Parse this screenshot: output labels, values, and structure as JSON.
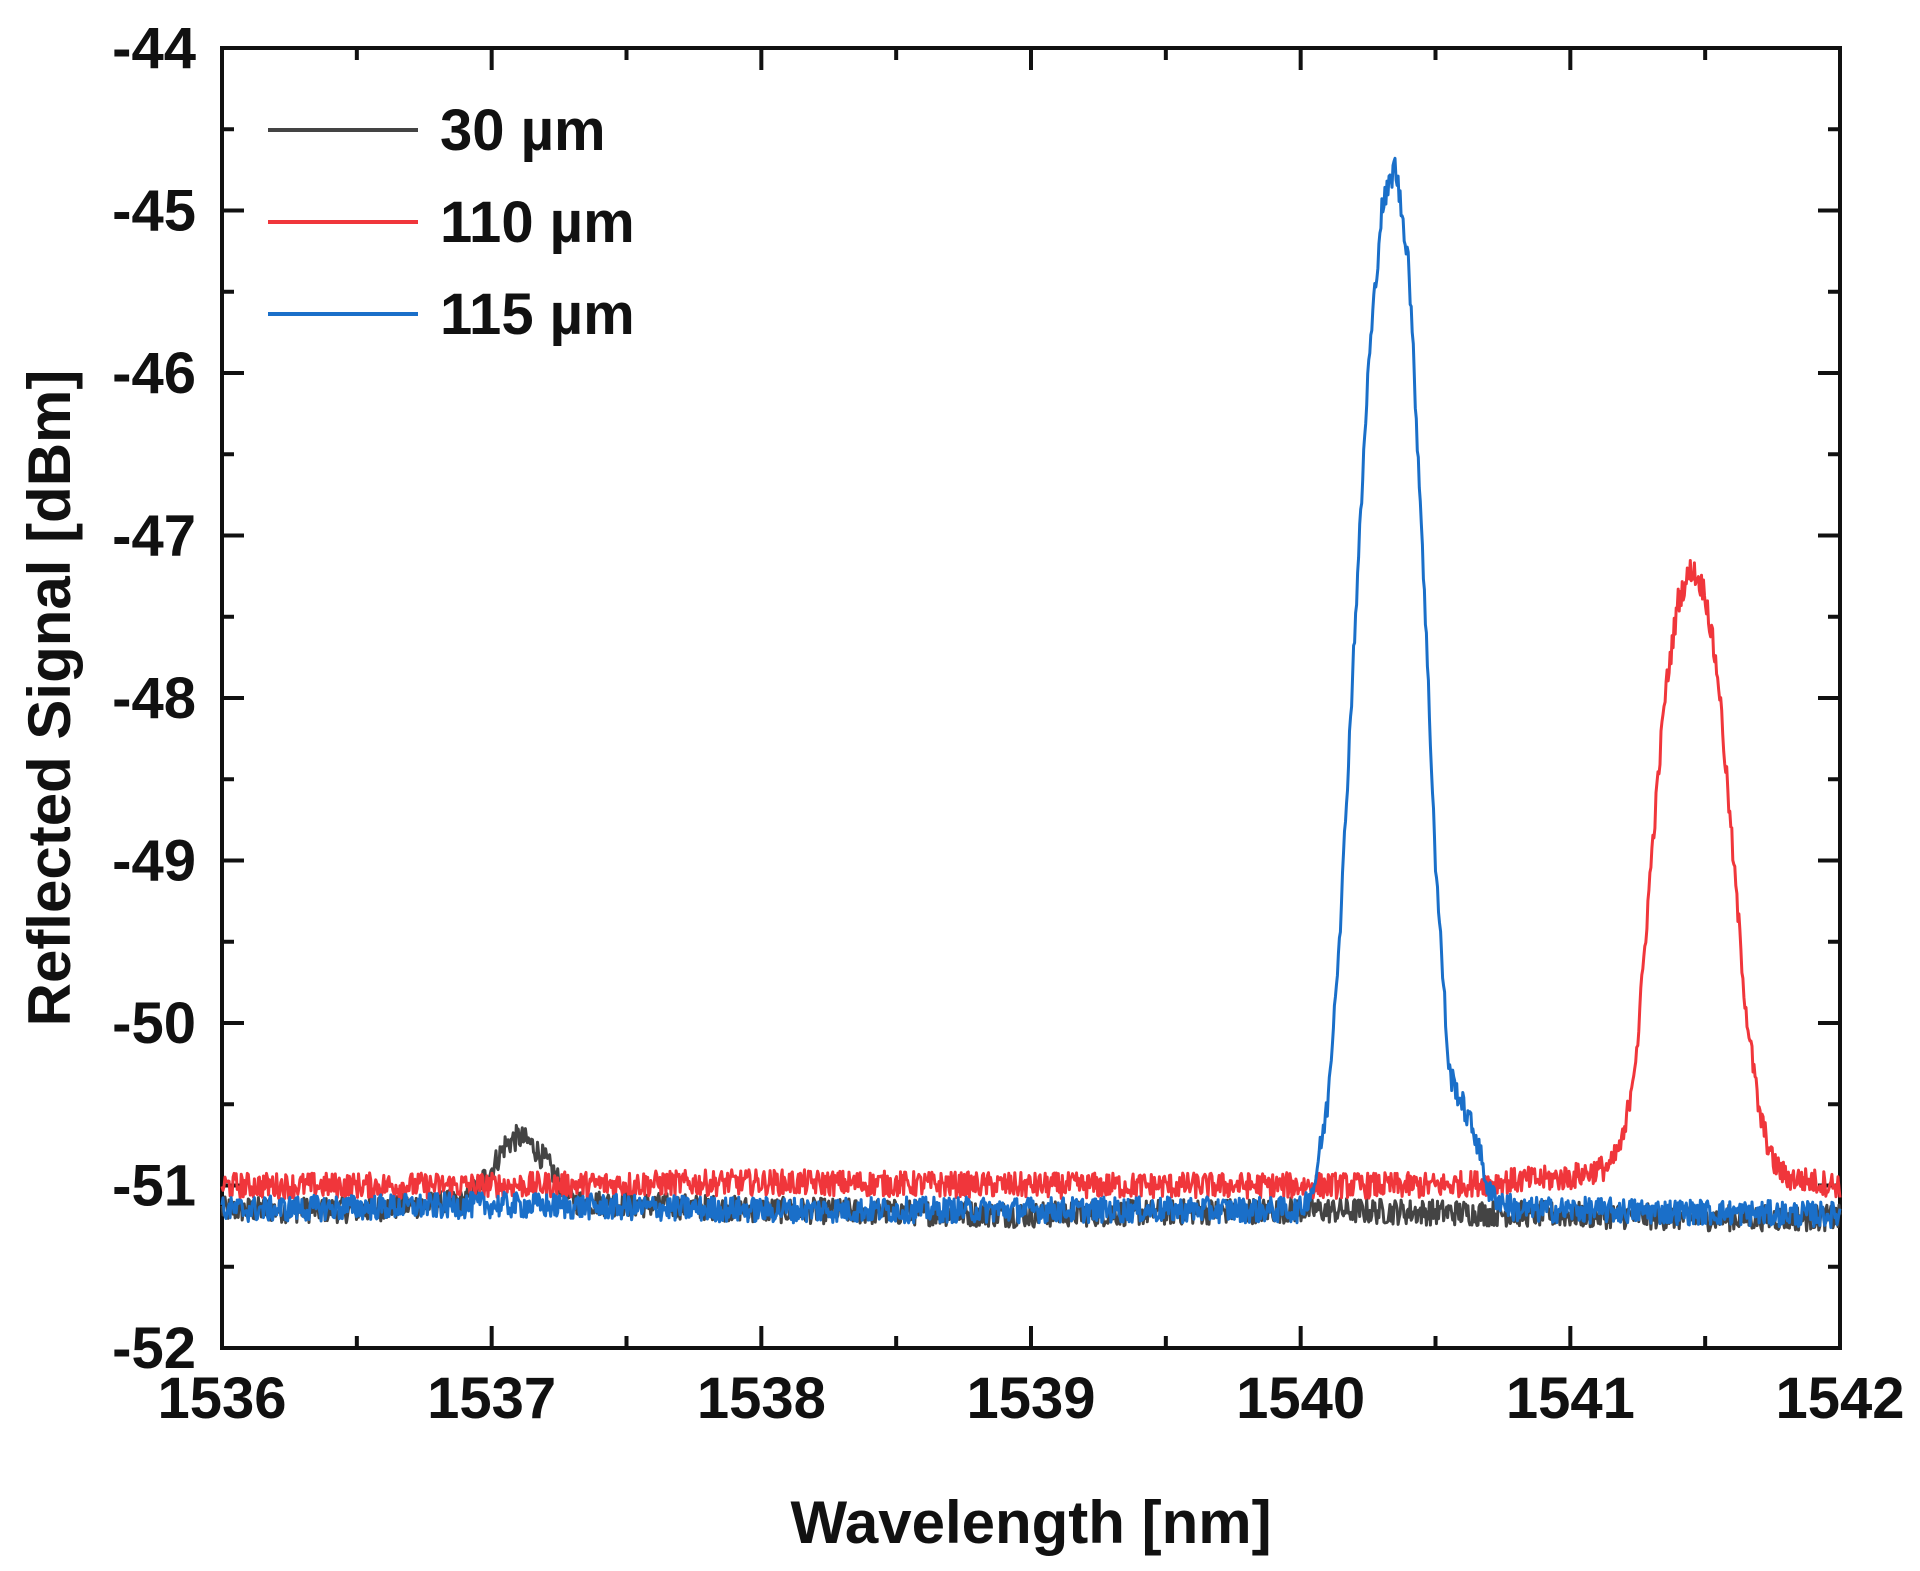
{
  "chart_data": {
    "type": "line",
    "title": "",
    "xlabel": "Wavelength [nm]",
    "ylabel": "Reflected Signal [dBm]",
    "xlim": [
      1536,
      1542
    ],
    "ylim": [
      -52,
      -44
    ],
    "xticks": [
      1536,
      1537,
      1538,
      1539,
      1540,
      1541,
      1542
    ],
    "xtick_labels": [
      "1536",
      "1537",
      "1538",
      "1539",
      "1540",
      "1541",
      "1542"
    ],
    "yticks": [
      -52,
      -51,
      -50,
      -49,
      -48,
      -47,
      -46,
      -45,
      -44
    ],
    "ytick_labels": [
      "-52",
      "-51",
      "-50",
      "-49",
      "-48",
      "-47",
      "-46",
      "-45",
      "-44"
    ],
    "grid": false,
    "legend_position": "top-left",
    "series": [
      {
        "name": "30 µm",
        "color": "#444444",
        "x": [
          1536.0,
          1536.5,
          1536.9,
          1537.0,
          1537.05,
          1537.1,
          1537.15,
          1537.2,
          1537.3,
          1538.0,
          1539.0,
          1540.0,
          1541.0,
          1541.5,
          1542.0
        ],
        "y": [
          -51.15,
          -51.15,
          -51.1,
          -50.9,
          -50.75,
          -50.7,
          -50.75,
          -50.85,
          -51.1,
          -51.15,
          -51.18,
          -51.15,
          -51.18,
          -51.2,
          -51.2
        ]
      },
      {
        "name": "110 µm",
        "color": "#f0363b",
        "x": [
          1536.0,
          1537.0,
          1538.0,
          1539.0,
          1540.0,
          1540.5,
          1541.0,
          1541.15,
          1541.2,
          1541.25,
          1541.3,
          1541.35,
          1541.4,
          1541.45,
          1541.5,
          1541.55,
          1541.6,
          1541.65,
          1541.7,
          1541.75,
          1541.8,
          1542.0
        ],
        "y": [
          -51.0,
          -51.0,
          -50.98,
          -51.0,
          -51.0,
          -51.0,
          -50.95,
          -50.88,
          -50.7,
          -50.1,
          -49.0,
          -48.0,
          -47.4,
          -47.2,
          -47.35,
          -47.9,
          -48.9,
          -49.9,
          -50.55,
          -50.85,
          -50.95,
          -51.0
        ]
      },
      {
        "name": "115 µm",
        "color": "#1a6fc9",
        "x": [
          1536.0,
          1537.0,
          1538.0,
          1539.0,
          1540.0,
          1540.05,
          1540.1,
          1540.15,
          1540.2,
          1540.25,
          1540.3,
          1540.35,
          1540.4,
          1540.45,
          1540.5,
          1540.55,
          1540.6,
          1540.65,
          1540.7,
          1540.8,
          1541.0,
          1542.0
        ],
        "y": [
          -51.15,
          -51.12,
          -51.15,
          -51.15,
          -51.15,
          -51.0,
          -50.5,
          -49.3,
          -47.6,
          -46.0,
          -45.0,
          -44.72,
          -45.3,
          -47.0,
          -49.0,
          -50.3,
          -50.5,
          -50.7,
          -51.05,
          -51.15,
          -51.15,
          -51.18
        ]
      }
    ]
  }
}
